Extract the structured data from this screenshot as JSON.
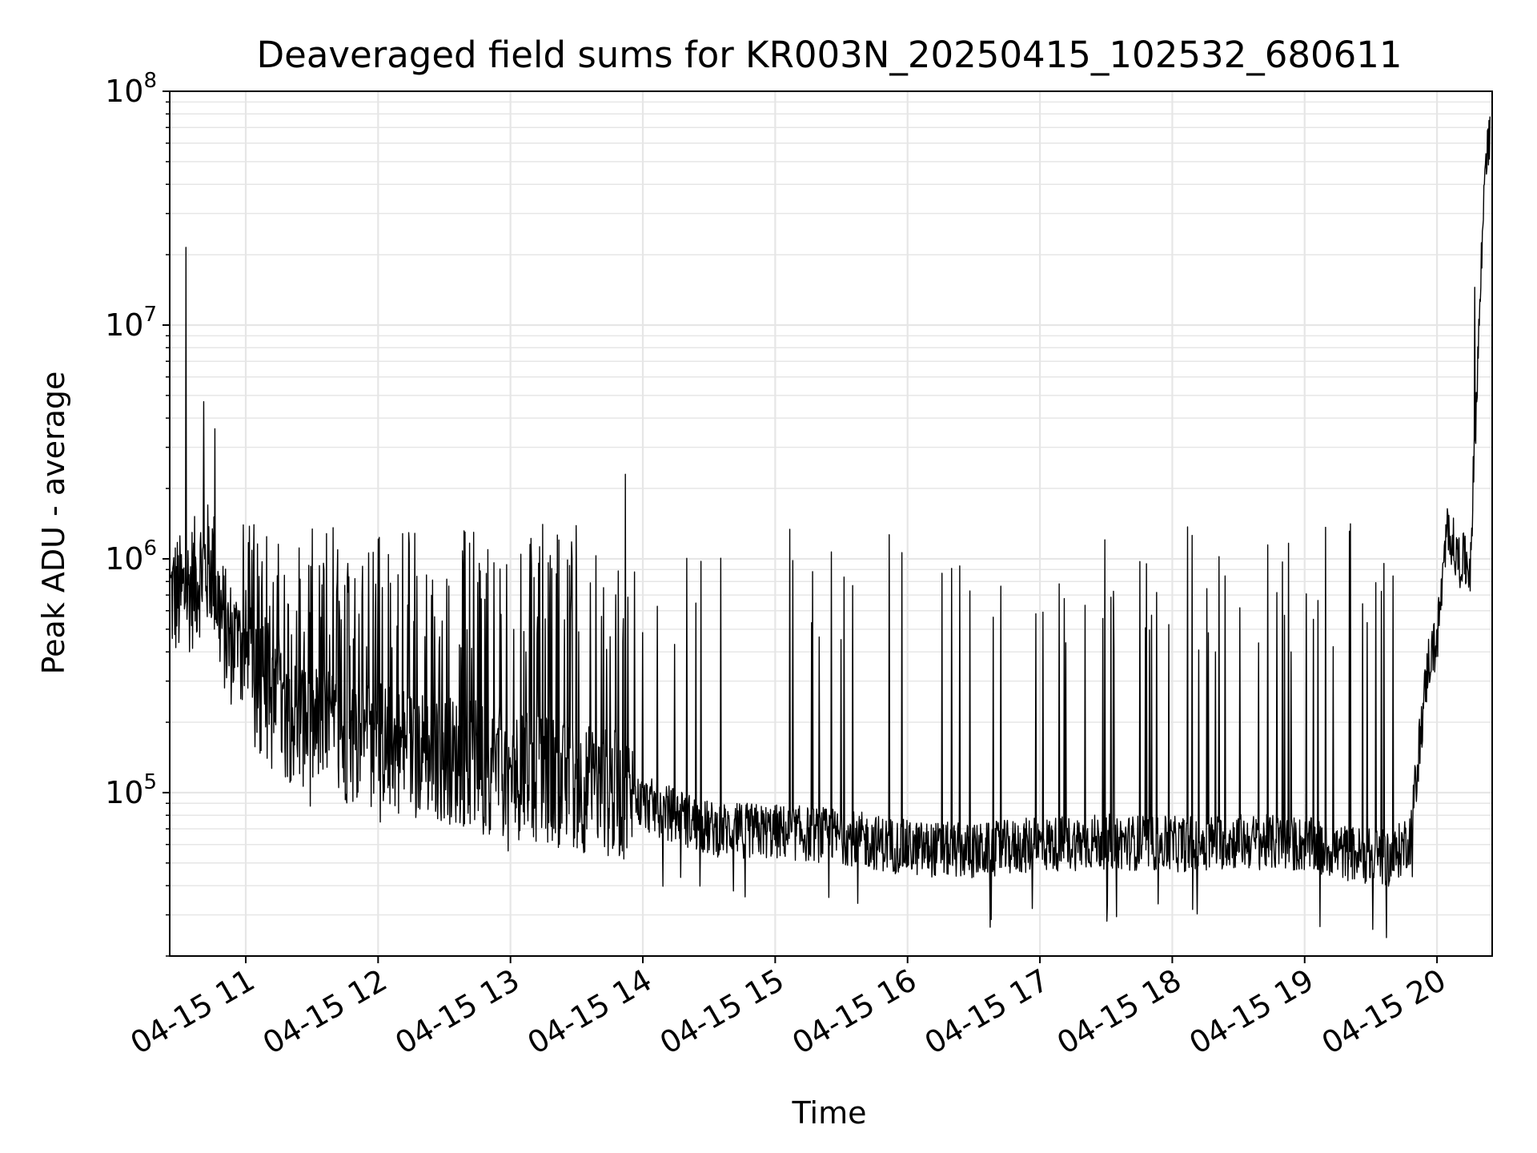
{
  "chart_data": {
    "type": "line",
    "title": "Deaveraged field sums for KR003N_20250415_102532_680611",
    "xlabel": "Time",
    "ylabel": "Peak ADU - average",
    "yscale": "log",
    "ylim": [
      20000,
      100000000
    ],
    "xlim": [
      "2025-04-15T10:25:32",
      "2025-04-15T20:25:00"
    ],
    "grid": true,
    "line_color": "#000000",
    "grid_color": "#e6e6e6",
    "x_ticks": [
      {
        "value": "2025-04-15T11:00",
        "label": "04-15 11"
      },
      {
        "value": "2025-04-15T12:00",
        "label": "04-15 12"
      },
      {
        "value": "2025-04-15T13:00",
        "label": "04-15 13"
      },
      {
        "value": "2025-04-15T14:00",
        "label": "04-15 14"
      },
      {
        "value": "2025-04-15T15:00",
        "label": "04-15 15"
      },
      {
        "value": "2025-04-15T16:00",
        "label": "04-15 16"
      },
      {
        "value": "2025-04-15T17:00",
        "label": "04-15 17"
      },
      {
        "value": "2025-04-15T18:00",
        "label": "04-15 18"
      },
      {
        "value": "2025-04-15T19:00",
        "label": "04-15 19"
      },
      {
        "value": "2025-04-15T20:00",
        "label": "04-15 20"
      }
    ],
    "y_ticks": [
      {
        "value": 100000,
        "base": "10",
        "exp": "5"
      },
      {
        "value": 1000000,
        "base": "10",
        "exp": "6"
      },
      {
        "value": 10000000,
        "base": "10",
        "exp": "7"
      },
      {
        "value": 100000000,
        "base": "10",
        "exp": "8"
      }
    ],
    "series": [
      {
        "baseline": [
          [
            "2025-04-15T10:26",
            700000
          ],
          [
            "2025-04-15T10:30",
            680000
          ],
          [
            "2025-04-15T10:35",
            750000
          ],
          [
            "2025-04-15T10:40",
            900000
          ],
          [
            "2025-04-15T10:45",
            950000
          ],
          [
            "2025-04-15T10:48",
            600000
          ],
          [
            "2025-04-15T10:52",
            450000
          ],
          [
            "2025-04-15T11:00",
            400000
          ],
          [
            "2025-04-15T11:05",
            260000
          ],
          [
            "2025-04-15T11:15",
            220000
          ],
          [
            "2025-04-15T11:30",
            190000
          ],
          [
            "2025-04-15T11:45",
            170000
          ],
          [
            "2025-04-15T12:00",
            160000
          ],
          [
            "2025-04-15T12:15",
            150000
          ],
          [
            "2025-04-15T12:30",
            140000
          ],
          [
            "2025-04-15T12:45",
            130000
          ],
          [
            "2025-04-15T13:00",
            120000
          ],
          [
            "2025-04-15T13:15",
            115000
          ],
          [
            "2025-04-15T13:30",
            105000
          ],
          [
            "2025-04-15T13:45",
            100000
          ],
          [
            "2025-04-15T14:00",
            90000
          ],
          [
            "2025-04-15T14:15",
            80000
          ],
          [
            "2025-04-15T14:30",
            70000
          ],
          [
            "2025-04-15T15:00",
            68000
          ],
          [
            "2025-04-15T15:30",
            65000
          ],
          [
            "2025-04-15T16:00",
            58000
          ],
          [
            "2025-04-15T16:30",
            56000
          ],
          [
            "2025-04-15T17:00",
            60000
          ],
          [
            "2025-04-15T17:30",
            62000
          ],
          [
            "2025-04-15T18:00",
            60000
          ],
          [
            "2025-04-15T18:30",
            62000
          ],
          [
            "2025-04-15T19:00",
            60000
          ],
          [
            "2025-04-15T19:20",
            55000
          ],
          [
            "2025-04-15T19:40",
            52000
          ],
          [
            "2025-04-15T19:48",
            65000
          ],
          [
            "2025-04-15T19:52",
            160000
          ],
          [
            "2025-04-15T19:56",
            360000
          ],
          [
            "2025-04-15T20:00",
            450000
          ],
          [
            "2025-04-15T20:05",
            1400000
          ],
          [
            "2025-04-15T20:09",
            1000000
          ],
          [
            "2025-04-15T20:12",
            980000
          ],
          [
            "2025-04-15T20:15",
            920000
          ],
          [
            "2025-04-15T20:22",
            55000000
          ],
          [
            "2025-04-15T20:24",
            60000000
          ]
        ],
        "spikes": [
          [
            "2025-04-15T10:33",
            21500000
          ],
          [
            "2025-04-15T10:41",
            4700000
          ],
          [
            "2025-04-15T10:46",
            3600000
          ],
          [
            "2025-04-15T13:52",
            2300000
          ],
          [
            "2025-04-15T20:17",
            14500000
          ],
          [
            "2025-04-15T20:23",
            69000000
          ]
        ]
      }
    ]
  }
}
